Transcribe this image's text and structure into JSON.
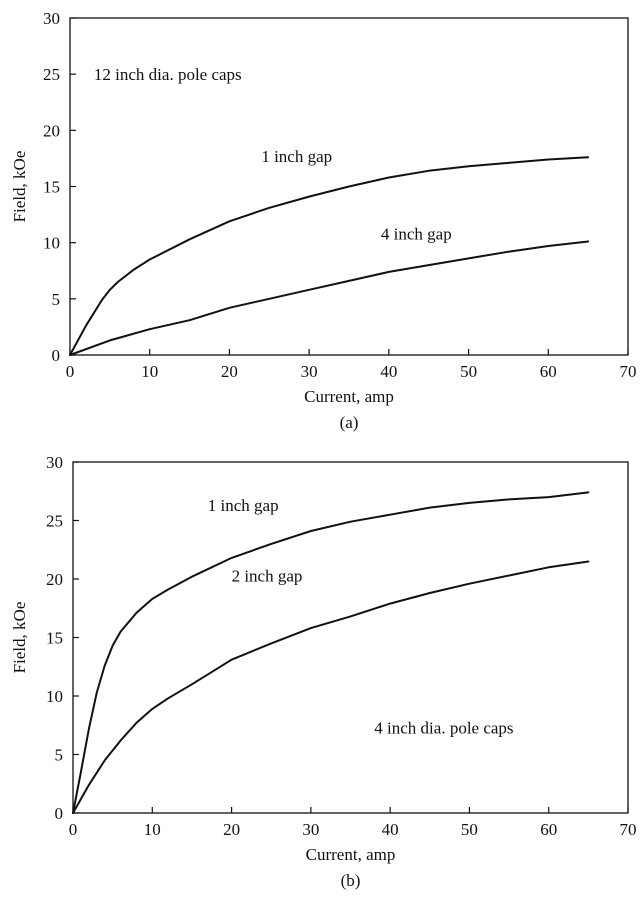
{
  "chart_data": [
    {
      "type": "line",
      "panel_label": "(a)",
      "xlabel": "Current, amp",
      "ylabel": "Field, kOe",
      "xlim": [
        0,
        70
      ],
      "ylim": [
        0,
        30
      ],
      "xticks": [
        0,
        10,
        20,
        30,
        40,
        50,
        60,
        70
      ],
      "yticks": [
        0,
        5,
        10,
        15,
        20,
        25,
        30
      ],
      "grid": false,
      "annotations": [
        {
          "id": "caption",
          "text": "12 inch dia. pole caps",
          "x": 3,
          "y": 24.5
        },
        {
          "id": "label-1in",
          "text": "1 inch gap",
          "x": 24,
          "y": 17.2
        },
        {
          "id": "label-4in",
          "text": "4 inch gap",
          "x": 39,
          "y": 10.3
        }
      ],
      "series": [
        {
          "name": "1 inch gap",
          "x": [
            0,
            2,
            4,
            5,
            6,
            8,
            10,
            15,
            20,
            25,
            30,
            35,
            40,
            45,
            50,
            55,
            60,
            65
          ],
          "y": [
            0,
            2.6,
            4.9,
            5.8,
            6.5,
            7.6,
            8.5,
            10.3,
            11.9,
            13.1,
            14.1,
            15.0,
            15.8,
            16.4,
            16.8,
            17.1,
            17.4,
            17.6
          ]
        },
        {
          "name": "4 inch gap",
          "x": [
            0,
            5,
            10,
            15,
            20,
            25,
            30,
            35,
            40,
            45,
            50,
            55,
            60,
            65
          ],
          "y": [
            0,
            1.3,
            2.3,
            3.1,
            4.2,
            5.0,
            5.8,
            6.6,
            7.4,
            8.0,
            8.6,
            9.2,
            9.7,
            10.1
          ]
        }
      ]
    },
    {
      "type": "line",
      "panel_label": "(b)",
      "xlabel": "Current, amp",
      "ylabel": "Field, kOe",
      "xlim": [
        0,
        70
      ],
      "ylim": [
        0,
        30
      ],
      "xticks": [
        0,
        10,
        20,
        30,
        40,
        50,
        60,
        70
      ],
      "yticks": [
        0,
        5,
        10,
        15,
        20,
        25,
        30
      ],
      "grid": false,
      "annotations": [
        {
          "id": "label-1in",
          "text": "1 inch gap",
          "x": 17,
          "y": 25.8
        },
        {
          "id": "label-2in",
          "text": "2 inch gap",
          "x": 20,
          "y": 19.8
        },
        {
          "id": "caption",
          "text": "4 inch dia. pole caps",
          "x": 38,
          "y": 6.8
        }
      ],
      "series": [
        {
          "name": "1 inch gap",
          "x": [
            0,
            1,
            2,
            3,
            4,
            5,
            6,
            8,
            10,
            12,
            15,
            20,
            25,
            30,
            35,
            40,
            45,
            50,
            55,
            60,
            65
          ],
          "y": [
            0,
            3.5,
            7.2,
            10.3,
            12.6,
            14.3,
            15.5,
            17.1,
            18.3,
            19.1,
            20.2,
            21.8,
            23.0,
            24.1,
            24.9,
            25.5,
            26.1,
            26.5,
            26.8,
            27.0,
            27.4
          ]
        },
        {
          "name": "2 inch gap",
          "x": [
            0,
            2,
            4,
            6,
            8,
            10,
            12,
            15,
            20,
            25,
            30,
            35,
            40,
            45,
            50,
            55,
            60,
            65
          ],
          "y": [
            0,
            2.4,
            4.5,
            6.2,
            7.7,
            8.9,
            9.8,
            11.0,
            13.1,
            14.5,
            15.8,
            16.8,
            17.9,
            18.8,
            19.6,
            20.3,
            21.0,
            21.5
          ]
        }
      ]
    }
  ]
}
